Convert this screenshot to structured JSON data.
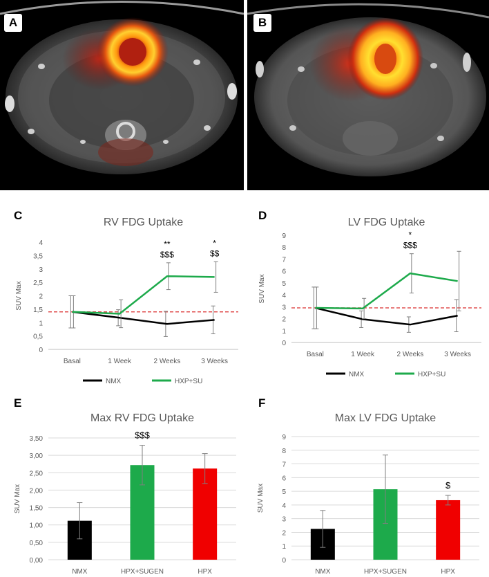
{
  "panels": {
    "a_label": "A",
    "b_label": "B",
    "c_label": "C",
    "d_label": "D",
    "e_label": "E",
    "f_label": "F"
  },
  "colors": {
    "nmx": "#000000",
    "hxp": "#1daa4b",
    "hpx": "#f00000",
    "reference": "#e05050",
    "grid": "#d9d9d9"
  },
  "chart_data": [
    {
      "id": "C",
      "type": "line",
      "title": "RV FDG Uptake",
      "ylabel": "SUV Max",
      "categories": [
        "Basal",
        "1 Week",
        "2 Weeks",
        "3 Weeks"
      ],
      "y_ticks": [
        "0",
        "0,5",
        "1",
        "1,5",
        "2",
        "2,5",
        "3",
        "3,5",
        "4"
      ],
      "ylim": [
        0,
        4
      ],
      "grid": false,
      "reference_line": 1.4,
      "legend_position": "bottom",
      "series": [
        {
          "name": "NMX",
          "values": [
            1.4,
            1.18,
            0.95,
            1.1
          ],
          "err": [
            0.6,
            0.3,
            0.47,
            0.52
          ]
        },
        {
          "name": "HXP+SU",
          "values": [
            1.4,
            1.33,
            2.73,
            2.7
          ],
          "err": [
            0.6,
            0.52,
            0.5,
            0.57
          ]
        }
      ],
      "annotations": [
        {
          "category": "2 Weeks",
          "lines": [
            "**",
            "$$$"
          ]
        },
        {
          "category": "3 Weeks",
          "lines": [
            "*",
            "$$"
          ]
        }
      ]
    },
    {
      "id": "D",
      "type": "line",
      "title": "LV FDG Uptake",
      "ylabel": "SUV Max",
      "categories": [
        "Basal",
        "1 Week",
        "2 Weeks",
        "3 Weeks"
      ],
      "y_ticks": [
        "0",
        "1",
        "2",
        "3",
        "4",
        "5",
        "6",
        "7",
        "8",
        "9"
      ],
      "ylim": [
        0,
        9
      ],
      "grid": false,
      "reference_line": 2.9,
      "legend_position": "bottom",
      "series": [
        {
          "name": "NMX",
          "values": [
            2.9,
            1.95,
            1.5,
            2.25
          ],
          "err": [
            1.75,
            0.7,
            0.65,
            1.35
          ]
        },
        {
          "name": "HXP+SU",
          "values": [
            2.9,
            2.85,
            5.8,
            5.15
          ],
          "err": [
            1.75,
            0.85,
            1.65,
            2.5
          ]
        }
      ],
      "annotations": [
        {
          "category": "2 Weeks",
          "lines": [
            "*",
            "$$$"
          ]
        }
      ]
    },
    {
      "id": "E",
      "type": "bar",
      "title": "Max RV FDG Uptake",
      "ylabel": "SUV Max",
      "categories": [
        "NMX",
        "HPX+SUGEN",
        "HPX"
      ],
      "values": [
        1.12,
        2.72,
        2.62
      ],
      "err": [
        0.52,
        0.57,
        0.43
      ],
      "y_ticks": [
        "0,00",
        "0,50",
        "1,00",
        "1,50",
        "2,00",
        "2,50",
        "3,00",
        "3,50"
      ],
      "ylim": [
        0,
        3.5
      ],
      "grid": true,
      "annotations": [
        {
          "category": "HPX+SUGEN",
          "lines": [
            "$$$"
          ]
        }
      ]
    },
    {
      "id": "F",
      "type": "bar",
      "title": "Max LV FDG Uptake",
      "ylabel": "SUV Max",
      "categories": [
        "NMX",
        "HPX+SUGEN",
        "HPX"
      ],
      "values": [
        2.25,
        5.15,
        4.35
      ],
      "err": [
        1.35,
        2.5,
        0.35
      ],
      "y_ticks": [
        "0",
        "1",
        "2",
        "3",
        "4",
        "5",
        "6",
        "7",
        "8",
        "9"
      ],
      "ylim": [
        0,
        9
      ],
      "grid": true,
      "annotations": [
        {
          "category": "HPX",
          "lines": [
            "$"
          ]
        }
      ]
    }
  ]
}
